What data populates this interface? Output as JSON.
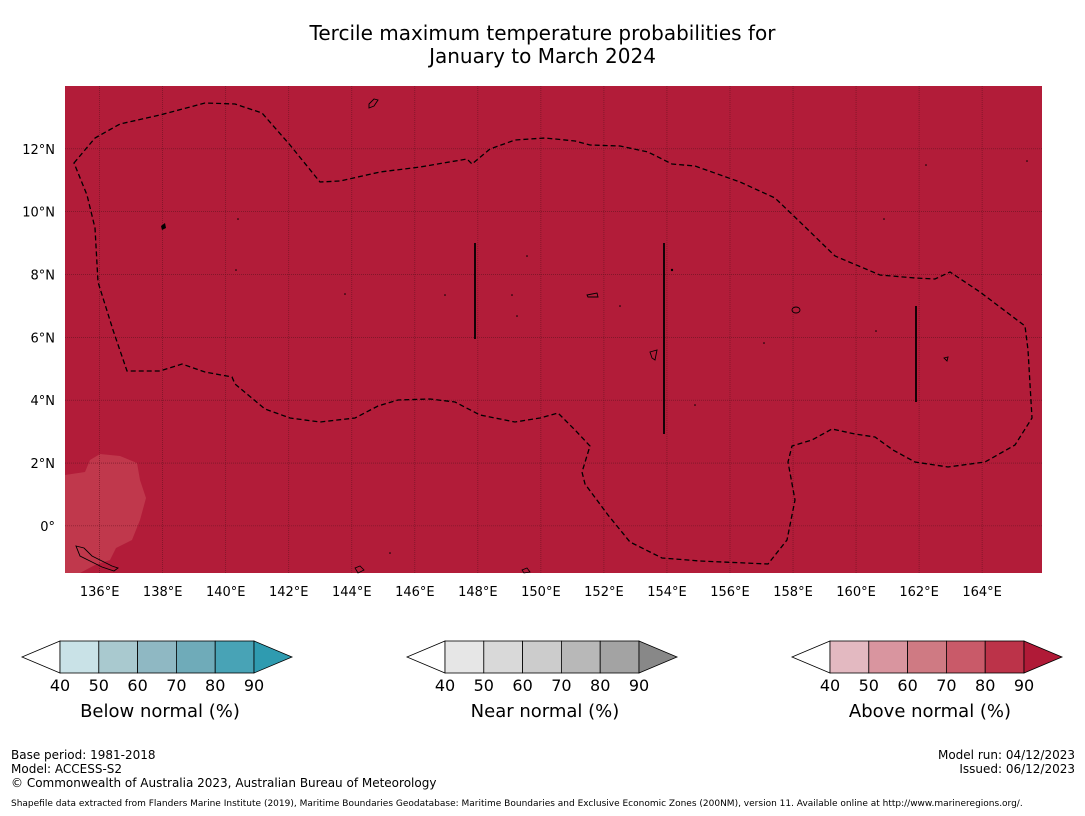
{
  "title": {
    "line1": "Tercile maximum temperature probabilities for",
    "line2": "January to March 2024"
  },
  "map": {
    "x_ticks": [
      "136°E",
      "138°E",
      "140°E",
      "142°E",
      "144°E",
      "146°E",
      "148°E",
      "150°E",
      "152°E",
      "154°E",
      "156°E",
      "158°E",
      "160°E",
      "162°E",
      "164°E"
    ],
    "x_tick_values": [
      136,
      138,
      140,
      142,
      144,
      146,
      148,
      150,
      152,
      154,
      156,
      158,
      160,
      162,
      164
    ],
    "y_ticks": [
      "12°N",
      "10°N",
      "8°N",
      "6°N",
      "4°N",
      "2°N",
      "0°"
    ],
    "y_tick_values": [
      12,
      10,
      8,
      6,
      4,
      2,
      0
    ],
    "lon_range": [
      134.9,
      165.9
    ],
    "lat_range": [
      -1.5,
      14
    ],
    "fill_color": "#b21c39",
    "region_light_color": "#c0384c",
    "gridlines": true
  },
  "colorbars": [
    {
      "label": "Below normal (%)",
      "ticks": [
        "40",
        "50",
        "60",
        "70",
        "80",
        "90"
      ],
      "colors": [
        "#ffffff",
        "#c9e2e7",
        "#a9c9cf",
        "#8fb8c3",
        "#6fabb9",
        "#48a3b6",
        "#2f9bb0"
      ]
    },
    {
      "label": "Near normal (%)",
      "ticks": [
        "40",
        "50",
        "60",
        "70",
        "80",
        "90"
      ],
      "colors": [
        "#ffffff",
        "#e6e6e6",
        "#d9d9d9",
        "#cccccc",
        "#b8b8b8",
        "#a3a3a3",
        "#888888"
      ]
    },
    {
      "label": "Above normal (%)",
      "ticks": [
        "40",
        "50",
        "60",
        "70",
        "80",
        "90"
      ],
      "colors": [
        "#ffffff",
        "#e3b9c1",
        "#d9959f",
        "#cf7a83",
        "#c95a69",
        "#bc3349",
        "#b01a37"
      ]
    }
  ],
  "footer": {
    "base_period": "Base period: 1981-2018",
    "model": "Model: ACCESS-S2",
    "copyright": "© Commonwealth of Australia 2023, Australian Bureau of Meteorology",
    "model_run": "Model run: 04/12/2023",
    "issued": "Issued: 06/12/2023",
    "shapefile": "Shapefile data extracted from Flanders Marine Institute (2019), Maritime Boundaries Geodatabase: Maritime Boundaries and Exclusive Economic Zones (200NM), version 11. Available online at http://www.marineregions.org/."
  }
}
